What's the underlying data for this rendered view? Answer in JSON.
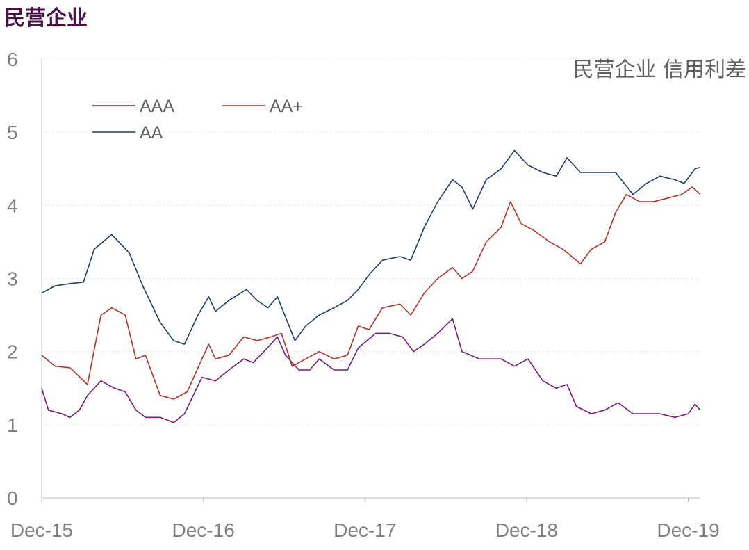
{
  "chart_data": {
    "type": "line",
    "title": "民营企业",
    "annotation": "民营企业 信用利差",
    "xlabel": "",
    "ylabel": "",
    "x_unit": "months since Dec-15",
    "xlim": [
      0,
      48.9
    ],
    "ylim": [
      0,
      6
    ],
    "yticks": [
      "0",
      "1",
      "2",
      "3",
      "4",
      "5",
      "6"
    ],
    "xticks": [
      {
        "label": "Dec-15",
        "x": 0
      },
      {
        "label": "Dec-16",
        "x": 12
      },
      {
        "label": "Dec-17",
        "x": 24
      },
      {
        "label": "Dec-18",
        "x": 36
      },
      {
        "label": "Dec-19",
        "x": 48
      }
    ],
    "grid": true,
    "legend_position": "top-left",
    "series": [
      {
        "name": "AAA",
        "color": "#7a1a78",
        "points": [
          [
            0,
            1.5
          ],
          [
            0.5,
            1.2
          ],
          [
            1.5,
            1.15
          ],
          [
            2.1,
            1.1
          ],
          [
            2.8,
            1.2
          ],
          [
            3.4,
            1.4
          ],
          [
            4.4,
            1.6
          ],
          [
            5.4,
            1.5
          ],
          [
            6.2,
            1.45
          ],
          [
            7,
            1.2
          ],
          [
            7.7,
            1.1
          ],
          [
            8.8,
            1.1
          ],
          [
            9.8,
            1.03
          ],
          [
            10.6,
            1.15
          ],
          [
            11.9,
            1.65
          ],
          [
            12.9,
            1.6
          ],
          [
            13.9,
            1.75
          ],
          [
            15,
            1.9
          ],
          [
            15.7,
            1.85
          ],
          [
            16.5,
            2.0
          ],
          [
            17.5,
            2.2
          ],
          [
            18.1,
            1.95
          ],
          [
            19.1,
            1.75
          ],
          [
            19.9,
            1.75
          ],
          [
            20.6,
            1.9
          ],
          [
            21.7,
            1.75
          ],
          [
            22.7,
            1.75
          ],
          [
            23.5,
            2.05
          ],
          [
            24.8,
            2.25
          ],
          [
            25.8,
            2.25
          ],
          [
            26.8,
            2.2
          ],
          [
            27.6,
            2.0
          ],
          [
            28.4,
            2.1
          ],
          [
            29.4,
            2.25
          ],
          [
            30.5,
            2.45
          ],
          [
            31.2,
            2.0
          ],
          [
            32.5,
            1.9
          ],
          [
            34.1,
            1.9
          ],
          [
            35.1,
            1.8
          ],
          [
            36.1,
            1.9
          ],
          [
            37.2,
            1.6
          ],
          [
            38.2,
            1.5
          ],
          [
            39,
            1.55
          ],
          [
            39.7,
            1.25
          ],
          [
            40.8,
            1.15
          ],
          [
            41.8,
            1.2
          ],
          [
            42.8,
            1.3
          ],
          [
            43.9,
            1.15
          ],
          [
            44.9,
            1.15
          ],
          [
            45.9,
            1.15
          ],
          [
            47,
            1.1
          ],
          [
            48,
            1.15
          ],
          [
            48.5,
            1.28
          ],
          [
            48.9,
            1.2
          ]
        ]
      },
      {
        "name": "AA+",
        "color": "#b8302a",
        "points": [
          [
            0,
            1.95
          ],
          [
            1,
            1.8
          ],
          [
            2.1,
            1.78
          ],
          [
            3.4,
            1.55
          ],
          [
            4.4,
            2.5
          ],
          [
            5.2,
            2.6
          ],
          [
            6.2,
            2.5
          ],
          [
            7,
            1.9
          ],
          [
            7.7,
            1.95
          ],
          [
            8.8,
            1.4
          ],
          [
            9.8,
            1.35
          ],
          [
            10.8,
            1.45
          ],
          [
            11.9,
            1.9
          ],
          [
            12.4,
            2.1
          ],
          [
            12.9,
            1.9
          ],
          [
            13.9,
            1.95
          ],
          [
            15,
            2.2
          ],
          [
            16,
            2.15
          ],
          [
            17,
            2.2
          ],
          [
            17.8,
            2.25
          ],
          [
            18.6,
            1.8
          ],
          [
            19.6,
            1.9
          ],
          [
            20.6,
            2.0
          ],
          [
            21.7,
            1.9
          ],
          [
            22.7,
            1.95
          ],
          [
            23.5,
            2.35
          ],
          [
            24.3,
            2.3
          ],
          [
            25.3,
            2.6
          ],
          [
            26.6,
            2.65
          ],
          [
            27.4,
            2.5
          ],
          [
            28.4,
            2.8
          ],
          [
            29.4,
            3.0
          ],
          [
            30.5,
            3.15
          ],
          [
            31.2,
            3.0
          ],
          [
            32,
            3.1
          ],
          [
            33,
            3.5
          ],
          [
            34.1,
            3.7
          ],
          [
            34.8,
            4.05
          ],
          [
            35.6,
            3.75
          ],
          [
            36.6,
            3.65
          ],
          [
            37.7,
            3.5
          ],
          [
            38.7,
            3.4
          ],
          [
            40,
            3.2
          ],
          [
            40.8,
            3.4
          ],
          [
            41.8,
            3.5
          ],
          [
            42.6,
            3.9
          ],
          [
            43.4,
            4.15
          ],
          [
            44.4,
            4.05
          ],
          [
            45.4,
            4.05
          ],
          [
            46.5,
            4.1
          ],
          [
            47.5,
            4.15
          ],
          [
            48.3,
            4.25
          ],
          [
            48.9,
            4.15
          ]
        ]
      },
      {
        "name": "AA",
        "color": "#1f3d66",
        "points": [
          [
            0,
            2.8
          ],
          [
            1,
            2.9
          ],
          [
            2.1,
            2.93
          ],
          [
            3.1,
            2.95
          ],
          [
            3.9,
            3.4
          ],
          [
            5.2,
            3.6
          ],
          [
            6.5,
            3.35
          ],
          [
            7.5,
            2.9
          ],
          [
            8.8,
            2.4
          ],
          [
            9.8,
            2.15
          ],
          [
            10.6,
            2.1
          ],
          [
            11.6,
            2.5
          ],
          [
            12.4,
            2.75
          ],
          [
            12.9,
            2.55
          ],
          [
            13.9,
            2.7
          ],
          [
            15.2,
            2.85
          ],
          [
            16,
            2.7
          ],
          [
            16.8,
            2.6
          ],
          [
            17.5,
            2.75
          ],
          [
            18.8,
            2.15
          ],
          [
            19.6,
            2.35
          ],
          [
            20.6,
            2.5
          ],
          [
            21.7,
            2.6
          ],
          [
            22.7,
            2.7
          ],
          [
            23.5,
            2.85
          ],
          [
            24.3,
            3.05
          ],
          [
            25.3,
            3.25
          ],
          [
            26.6,
            3.3
          ],
          [
            27.4,
            3.25
          ],
          [
            28.4,
            3.7
          ],
          [
            29.4,
            4.05
          ],
          [
            30.5,
            4.35
          ],
          [
            31.2,
            4.25
          ],
          [
            32,
            3.95
          ],
          [
            33,
            4.35
          ],
          [
            34.1,
            4.5
          ],
          [
            35.1,
            4.75
          ],
          [
            36.1,
            4.55
          ],
          [
            37.2,
            4.45
          ],
          [
            38.2,
            4.4
          ],
          [
            39,
            4.65
          ],
          [
            40,
            4.45
          ],
          [
            41.3,
            4.45
          ],
          [
            42.6,
            4.45
          ],
          [
            43.9,
            4.15
          ],
          [
            44.9,
            4.3
          ],
          [
            45.9,
            4.4
          ],
          [
            47,
            4.35
          ],
          [
            47.7,
            4.3
          ],
          [
            48.5,
            4.5
          ],
          [
            48.9,
            4.52
          ]
        ]
      }
    ]
  }
}
